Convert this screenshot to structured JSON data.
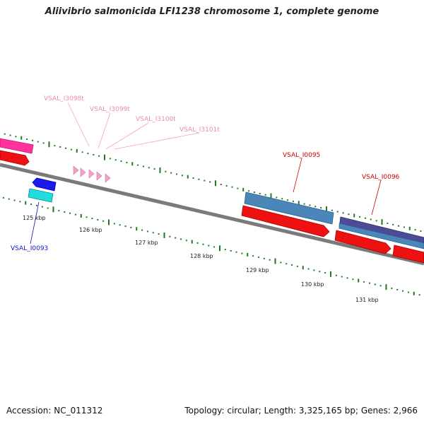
{
  "title": "Aliivibrio salmonicida LFI1238 chromosome 1, complete genome",
  "footer": {
    "accession": "Accession: NC_011312",
    "stats": "Topology: circular; Length: 3,325,165 bp; Genes: 2,966"
  },
  "colors": {
    "backbone": "#7a7a7a",
    "ticks": "#1f7a1f",
    "trna": "#f4a0c8",
    "cds_reverse": "#1a1aee",
    "cds_forward_red": "#ee1111",
    "steelblue": "#4a86b8",
    "purple": "#4b4b96",
    "magenta": "#ff3399",
    "cyan": "#22dddd",
    "label_red": "#cc0000",
    "label_pink": "#e88ab4",
    "label_blue": "#1111cc"
  },
  "kbp_labels": [
    "125 kbp",
    "126 kbp",
    "127 kbp",
    "128 kbp",
    "129 kbp",
    "130 kbp",
    "131 kbp"
  ],
  "gene_labels": {
    "trna": [
      "VSAL_I3098t",
      "VSAL_I3099t",
      "VSAL_I3100t",
      "VSAL_I3101t"
    ],
    "cds_top": [
      "VSAL_I0095",
      "VSAL_I0096"
    ],
    "cds_bottom": [
      "VSAL_I0093"
    ]
  }
}
